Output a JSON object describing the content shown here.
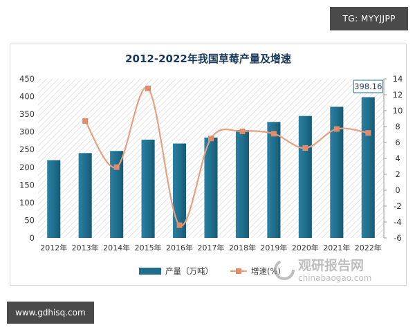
{
  "tag": "TG: MYYJJPP",
  "site": "www.gdhisq.com",
  "watermark": {
    "name": "观研报告网",
    "domain": "chinabaogao.com"
  },
  "chart_data": {
    "type": "bar",
    "title": "2012-2022年我国草莓产量及增速",
    "categories": [
      "2012年",
      "2013年",
      "2014年",
      "2015年",
      "2016年",
      "2017年",
      "2018年",
      "2019年",
      "2020年",
      "2021年",
      "2022年"
    ],
    "series": [
      {
        "name": "产量（万吨）",
        "type": "bar",
        "axis": "left",
        "values": [
          220,
          240,
          246,
          278,
          267,
          284,
          305,
          328,
          345,
          371,
          398.16
        ]
      },
      {
        "name": "增速(%)",
        "type": "line",
        "axis": "right",
        "values": [
          null,
          8.7,
          2.9,
          12.8,
          -4.4,
          6.5,
          7.4,
          7.1,
          5.3,
          7.7,
          7.2
        ]
      }
    ],
    "left_axis": {
      "min": 0,
      "max": 450,
      "step": 50,
      "ticks": [
        "0",
        "50",
        "100",
        "150",
        "200",
        "250",
        "300",
        "350",
        "400",
        "450"
      ]
    },
    "right_axis": {
      "min": -6,
      "max": 14,
      "step": 2,
      "ticks": [
        "-6",
        "-4",
        "-2",
        "0",
        "2",
        "4",
        "6",
        "8",
        "10",
        "12",
        "14"
      ]
    },
    "annotation": "398.16",
    "legend": {
      "position": "bottom",
      "bar_label": "产量（万吨）",
      "line_label": "增速(%)"
    },
    "colors": {
      "bar": "#1f6e8c",
      "line": "#e5a080",
      "marker": "#e08c6a",
      "title": "#1a3a5c"
    }
  }
}
